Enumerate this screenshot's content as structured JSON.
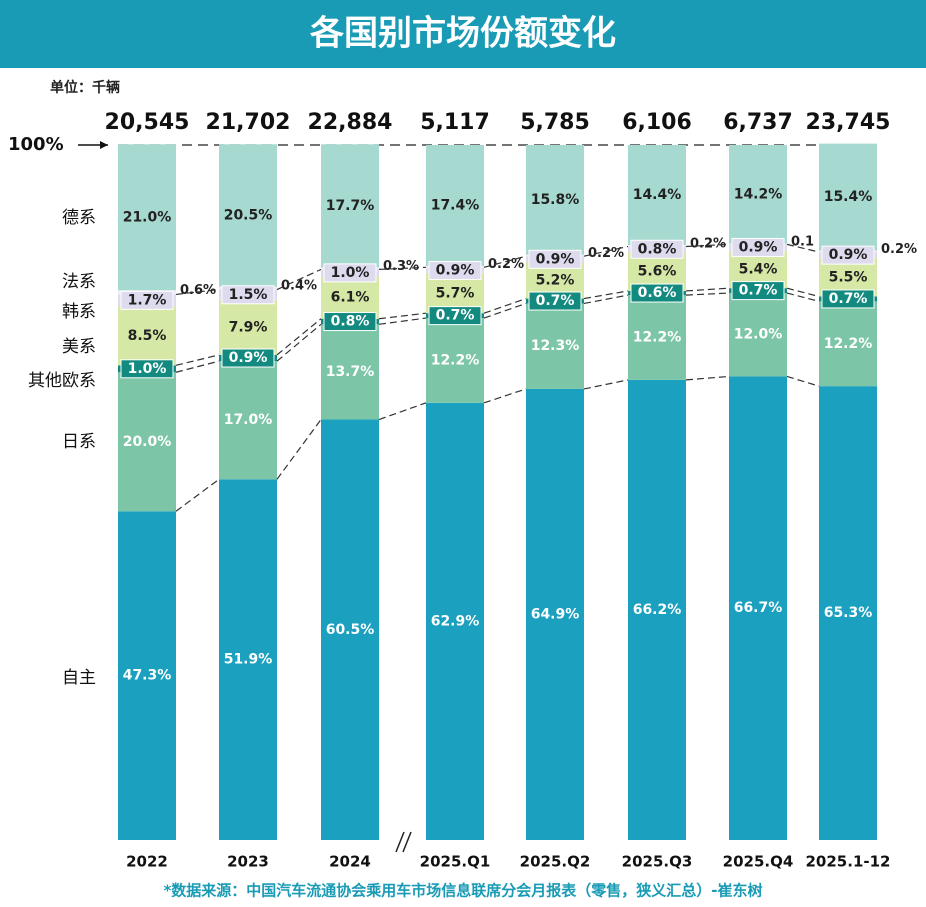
{
  "chart_data": {
    "type": "stacked_bar_percent",
    "title": "各国别市场份额变化",
    "unit": "单位：千辆",
    "source": "*数据来源：中国汽车流通协会乘用车市场信息联席分会月报表（零售，狭义汇总）-崔东树",
    "categories": [
      "2022",
      "2023",
      "2024",
      "2025.Q1",
      "2025.Q2",
      "2025.Q3",
      "2025.Q4",
      "2025.1-12"
    ],
    "totals": [
      "20,545",
      "21,702",
      "22,884",
      "5,117",
      "5,785",
      "6,106",
      "6,737",
      "23,745"
    ],
    "ylim": [
      0,
      100
    ],
    "yticks": [
      {
        "value": 100,
        "label": "100%"
      }
    ],
    "series": [
      {
        "name": "自主",
        "color": "#1ba0bf",
        "values": [
          47.3,
          51.9,
          60.5,
          62.9,
          64.9,
          66.2,
          66.7,
          65.3
        ],
        "value_labels": [
          "47.3%",
          "51.9%",
          "60.5%",
          "62.9%",
          "64.9%",
          "66.2%",
          "66.7%",
          "65.3%"
        ]
      },
      {
        "name": "日系",
        "color": "#7cc6a7",
        "values": [
          20.0,
          17.0,
          13.7,
          12.2,
          12.3,
          12.2,
          12.0,
          12.2
        ],
        "value_labels": [
          "20.0%",
          "17.0%",
          "13.7%",
          "12.2%",
          "12.3%",
          "12.2%",
          "12.0%",
          "12.2%"
        ]
      },
      {
        "name": "其他欧系",
        "color": "#138a80",
        "values": [
          1.0,
          0.9,
          0.8,
          0.7,
          0.7,
          0.6,
          0.7,
          0.7
        ],
        "value_labels": [
          "1.0%",
          "0.9%",
          "0.8%",
          "0.7%",
          "0.7%",
          "0.6%",
          "0.7%",
          "0.7%"
        ]
      },
      {
        "name": "美系",
        "color": "#d5e8a6",
        "values": [
          8.5,
          7.9,
          6.1,
          5.7,
          5.2,
          5.6,
          5.4,
          5.5
        ],
        "value_labels": [
          "8.5%",
          "7.9%",
          "6.1%",
          "5.7%",
          "5.2%",
          "5.6%",
          "5.4%",
          "5.5%"
        ]
      },
      {
        "name": "韩系",
        "color": "#dedbee",
        "values": [
          1.7,
          1.5,
          1.0,
          0.9,
          0.9,
          0.8,
          0.9,
          0.9
        ],
        "value_labels": [
          "1.7%",
          "1.5%",
          "1.0%",
          "0.9%",
          "0.9%",
          "0.8%",
          "0.9%",
          "0.9%"
        ]
      },
      {
        "name": "法系",
        "color": "#eeeef4",
        "values": [
          0.6,
          0.4,
          0.3,
          0.2,
          0.2,
          0.2,
          0.1,
          0.2
        ],
        "value_labels": [
          "0.6%",
          "0.4%",
          "0.3%",
          "0.2%",
          "0.2%",
          "0.2%",
          "0.1",
          "0.2%"
        ]
      },
      {
        "name": "德系",
        "color": "#a6d9cf",
        "values": [
          21.0,
          20.5,
          17.7,
          17.4,
          15.8,
          14.4,
          14.2,
          15.4
        ],
        "value_labels": [
          "21.0%",
          "20.5%",
          "17.7%",
          "17.4%",
          "15.8%",
          "14.4%",
          "14.2%",
          "15.4%"
        ]
      }
    ]
  }
}
